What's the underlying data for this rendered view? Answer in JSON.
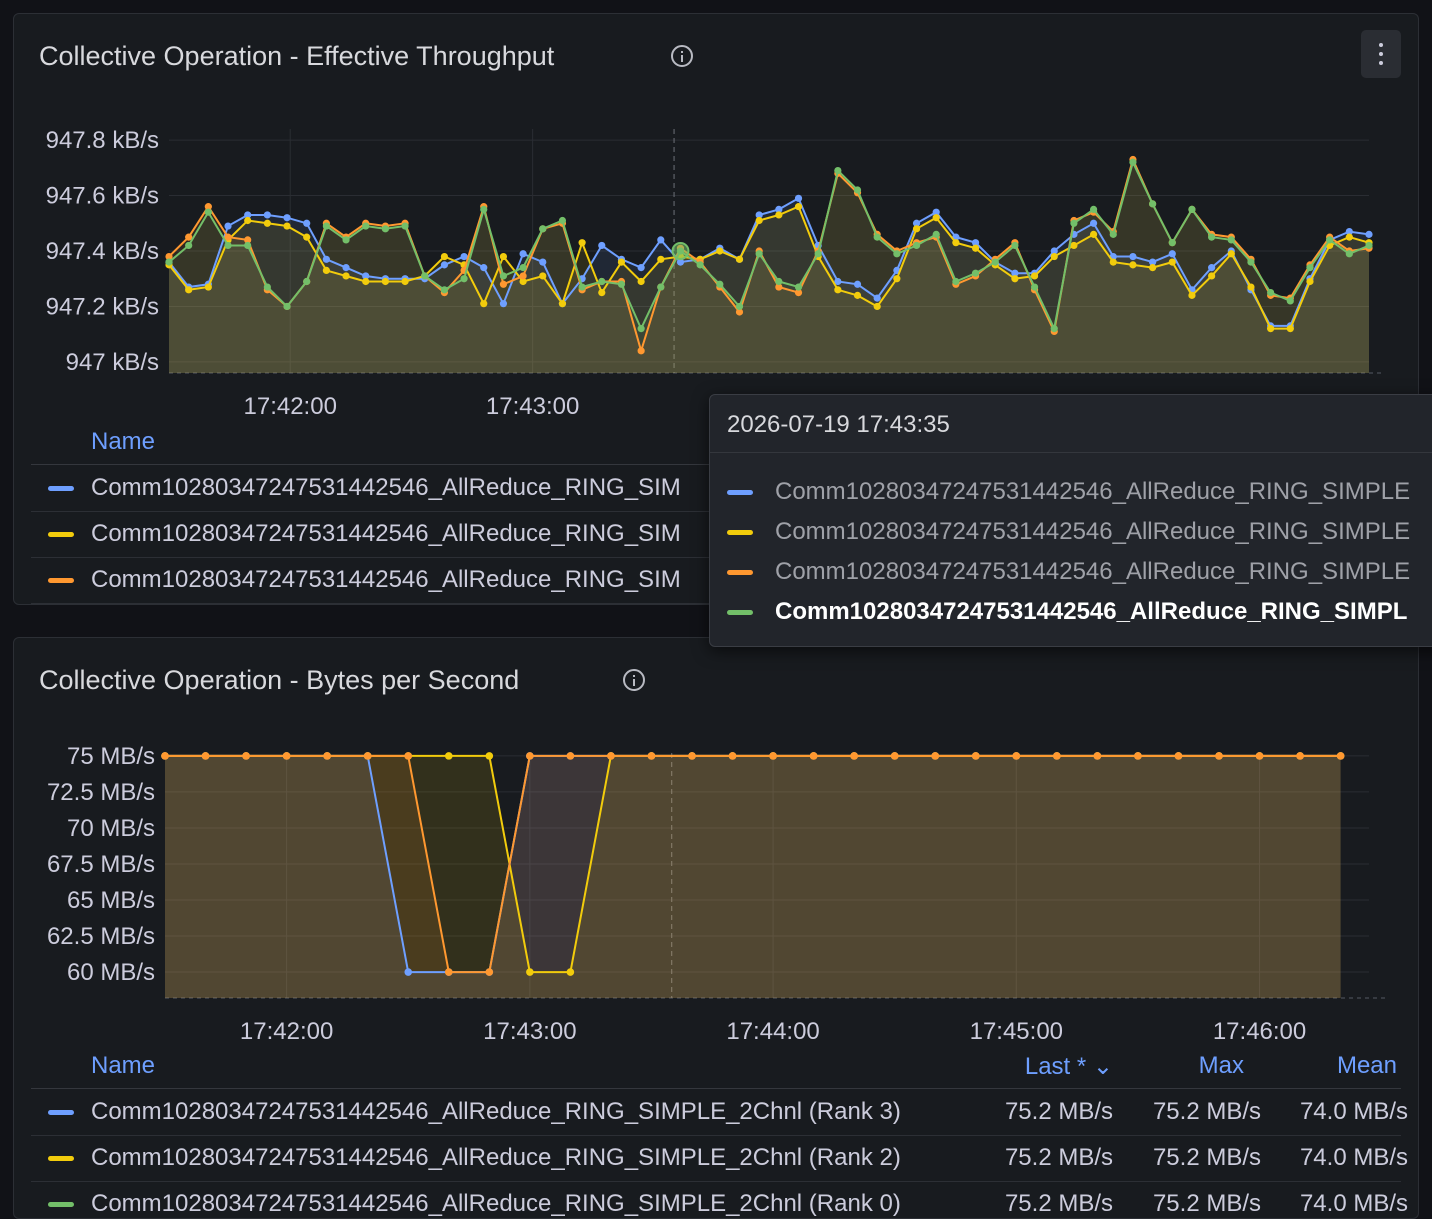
{
  "colors": {
    "blue": "#6e9fff",
    "yellow": "#f2cc0c",
    "orange": "#ff9830",
    "green": "#73bf69"
  },
  "panel1": {
    "title": "Collective Operation - Effective Throughput",
    "info_icon": "info-circle-icon",
    "menu_icon": "kebab-menu-icon",
    "legend": {
      "name_header": "Name",
      "rows": [
        {
          "label": "Comm10280347247531442546_AllReduce_RING_SIM",
          "color": "#6e9fff"
        },
        {
          "label": "Comm10280347247531442546_AllReduce_RING_SIM",
          "color": "#f2cc0c"
        },
        {
          "label": "Comm10280347247531442546_AllReduce_RING_SIM",
          "color": "#ff9830"
        }
      ]
    }
  },
  "panel2": {
    "title": "Collective Operation - Bytes per Second",
    "info_icon": "info-circle-icon",
    "legend": {
      "name_header": "Name",
      "last_header": "Last * ⌄",
      "max_header": "Max",
      "mean_header": "Mean",
      "rows": [
        {
          "label": "Comm10280347247531442546_AllReduce_RING_SIMPLE_2Chnl (Rank 3)",
          "color": "#6e9fff",
          "last": "75.2 MB/s",
          "max": "75.2 MB/s",
          "mean": "74.0 MB/s"
        },
        {
          "label": "Comm10280347247531442546_AllReduce_RING_SIMPLE_2Chnl (Rank 2)",
          "color": "#f2cc0c",
          "last": "75.2 MB/s",
          "max": "75.2 MB/s",
          "mean": "74.0 MB/s"
        },
        {
          "label": "Comm10280347247531442546_AllReduce_RING_SIMPLE_2Chnl (Rank 0)",
          "color": "#73bf69",
          "last": "75.2 MB/s",
          "max": "75.2 MB/s",
          "mean": "74.0 MB/s"
        }
      ]
    }
  },
  "tooltip": {
    "time": "2026-07-19 17:43:35",
    "rows": [
      {
        "label": "Comm10280347247531442546_AllReduce_RING_SIMPLE",
        "color": "#6e9fff",
        "highlight": false
      },
      {
        "label": "Comm10280347247531442546_AllReduce_RING_SIMPLE",
        "color": "#f2cc0c",
        "highlight": false
      },
      {
        "label": "Comm10280347247531442546_AllReduce_RING_SIMPLE",
        "color": "#ff9830",
        "highlight": false
      },
      {
        "label": "Comm10280347247531442546_AllReduce_RING_SIMPL",
        "color": "#73bf69",
        "highlight": true
      }
    ]
  },
  "chart_data": [
    {
      "type": "line",
      "title": "Collective Operation - Effective Throughput",
      "x_unit": "time",
      "x_range": [
        "17:41:30",
        "17:46:27"
      ],
      "x_ticks": [
        "17:42:00",
        "17:43:00"
      ],
      "y_ticks": [
        "947.8 kB/s",
        "947.6 kB/s",
        "947.4 kB/s",
        "947.2 kB/s",
        "947 kB/s"
      ],
      "y_tick_values": [
        947.8,
        947.6,
        947.4,
        947.2,
        947.0
      ],
      "ylim": [
        946.96,
        947.84
      ],
      "grid": true,
      "hover_time": "17:43:35",
      "hover_series": 3,
      "series": [
        {
          "color": "#6e9fff",
          "values": [
            947.36,
            947.27,
            947.28,
            947.49,
            947.53,
            947.53,
            947.52,
            947.5,
            947.37,
            947.34,
            947.31,
            947.3,
            947.3,
            947.3,
            947.35,
            947.38,
            947.34,
            947.21,
            947.39,
            947.36,
            947.21,
            947.3,
            947.42,
            947.37,
            947.34,
            947.44,
            947.36,
            947.37,
            947.41,
            947.37,
            947.53,
            947.55,
            947.59,
            947.42,
            947.29,
            947.28,
            947.23,
            947.33,
            947.5,
            947.54,
            947.45,
            947.43,
            947.36,
            947.32,
            947.32,
            947.4,
            947.46,
            947.5,
            947.38,
            947.38,
            947.36,
            947.39,
            947.26,
            947.34,
            947.4,
            947.26,
            947.13,
            947.13,
            947.3,
            947.44,
            947.47,
            947.46
          ]
        },
        {
          "color": "#f2cc0c",
          "values": [
            947.35,
            947.26,
            947.27,
            947.44,
            947.51,
            947.5,
            947.49,
            947.45,
            947.33,
            947.31,
            947.29,
            947.29,
            947.29,
            947.31,
            947.38,
            947.35,
            947.21,
            947.38,
            947.29,
            947.31,
            947.21,
            947.43,
            947.25,
            947.36,
            947.29,
            947.37,
            947.38,
            947.37,
            947.4,
            947.37,
            947.51,
            947.53,
            947.56,
            947.38,
            947.26,
            947.24,
            947.2,
            947.3,
            947.48,
            947.52,
            947.43,
            947.41,
            947.35,
            947.3,
            947.31,
            947.38,
            947.42,
            947.46,
            947.36,
            947.35,
            947.34,
            947.36,
            947.24,
            947.31,
            947.39,
            947.27,
            947.12,
            947.12,
            947.29,
            947.42,
            947.45,
            947.43
          ]
        },
        {
          "color": "#ff9830",
          "values": [
            947.38,
            947.45,
            947.56,
            947.45,
            947.44,
            947.26,
            947.2,
            947.29,
            947.5,
            947.45,
            947.5,
            947.49,
            947.5,
            947.31,
            947.25,
            947.33,
            947.56,
            947.28,
            947.31,
            947.48,
            947.5,
            947.26,
            947.29,
            947.29,
            947.04,
            947.27,
            947.41,
            947.36,
            947.27,
            947.18,
            947.4,
            947.27,
            947.25,
            947.4,
            947.68,
            947.61,
            947.46,
            947.4,
            947.43,
            947.45,
            947.28,
            947.31,
            947.37,
            947.43,
            947.26,
            947.11,
            947.51,
            947.54,
            947.47,
            947.73,
            947.57,
            947.43,
            947.55,
            947.46,
            947.45,
            947.37,
            947.24,
            947.23,
            947.35,
            947.45,
            947.4,
            947.41
          ]
        },
        {
          "color": "#73bf69",
          "values": [
            947.36,
            947.42,
            947.54,
            947.42,
            947.42,
            947.27,
            947.2,
            947.29,
            947.49,
            947.44,
            947.49,
            947.48,
            947.49,
            947.31,
            947.26,
            947.3,
            947.55,
            947.31,
            947.34,
            947.48,
            947.51,
            947.27,
            947.29,
            947.28,
            947.12,
            947.27,
            947.4,
            947.35,
            947.28,
            947.2,
            947.39,
            947.29,
            947.27,
            947.39,
            947.69,
            947.62,
            947.45,
            947.39,
            947.42,
            947.46,
            947.29,
            947.32,
            947.36,
            947.42,
            947.27,
            947.12,
            947.5,
            947.55,
            947.46,
            947.72,
            947.57,
            947.43,
            947.55,
            947.45,
            947.44,
            947.36,
            947.25,
            947.22,
            947.34,
            947.44,
            947.39,
            947.42
          ]
        }
      ]
    },
    {
      "type": "line",
      "title": "Collective Operation - Bytes per Second",
      "x_unit": "time",
      "x_range": [
        "17:41:30",
        "17:46:27"
      ],
      "x_ticks": [
        "17:42:00",
        "17:43:00",
        "17:44:00",
        "17:45:00",
        "17:46:00"
      ],
      "y_ticks": [
        "75 MB/s",
        "72.5 MB/s",
        "70 MB/s",
        "67.5 MB/s",
        "65 MB/s",
        "62.5 MB/s",
        "60 MB/s"
      ],
      "y_tick_values": [
        75,
        72.5,
        70,
        67.5,
        65,
        62.5,
        60
      ],
      "ylim": [
        58.2,
        75.2
      ],
      "grid": true,
      "hover_time": "17:43:35",
      "series": [
        {
          "color": "#6e9fff",
          "low_from": "17:42:30",
          "low_to": "17:42:50"
        },
        {
          "color": "#f2cc0c",
          "low_from": "17:42:55",
          "low_to": "17:43:15"
        },
        {
          "color": "#ff9830",
          "low_from": "17:42:35",
          "low_to": "17:42:55"
        }
      ]
    }
  ]
}
